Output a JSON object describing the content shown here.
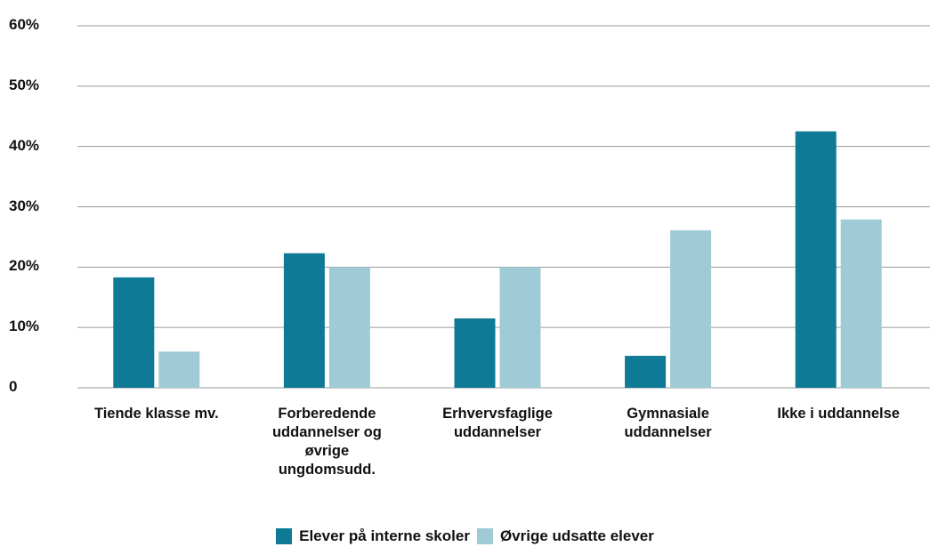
{
  "chart_data": {
    "type": "bar",
    "categories": [
      "Tiende klasse mv.",
      "Forberedende uddannelser og øvrige ungdomsudd.",
      "Erhvervsfaglige uddannelser",
      "Gymnasiale uddannelser",
      "Ikke i uddannelse"
    ],
    "series": [
      {
        "name": "Elever på interne skoler",
        "color": "#0e7a96",
        "values": [
          18.3,
          22.3,
          11.5,
          5.3,
          42.5
        ]
      },
      {
        "name": "Øvrige udsatte elever",
        "color": "#9ecbd6",
        "values": [
          6.0,
          20.0,
          20.0,
          26.1,
          27.9
        ]
      }
    ],
    "ylim": [
      0,
      60
    ],
    "yticks": [
      0,
      {
        "value": 10,
        "label": "10%"
      },
      {
        "value": 20,
        "label": "20%"
      },
      {
        "value": 30,
        "label": "30%"
      },
      {
        "value": 40,
        "label": "40%"
      },
      {
        "value": 50,
        "label": "50%"
      },
      {
        "value": 60,
        "label": "60%"
      }
    ],
    "grid": true,
    "legend": "bottom"
  }
}
